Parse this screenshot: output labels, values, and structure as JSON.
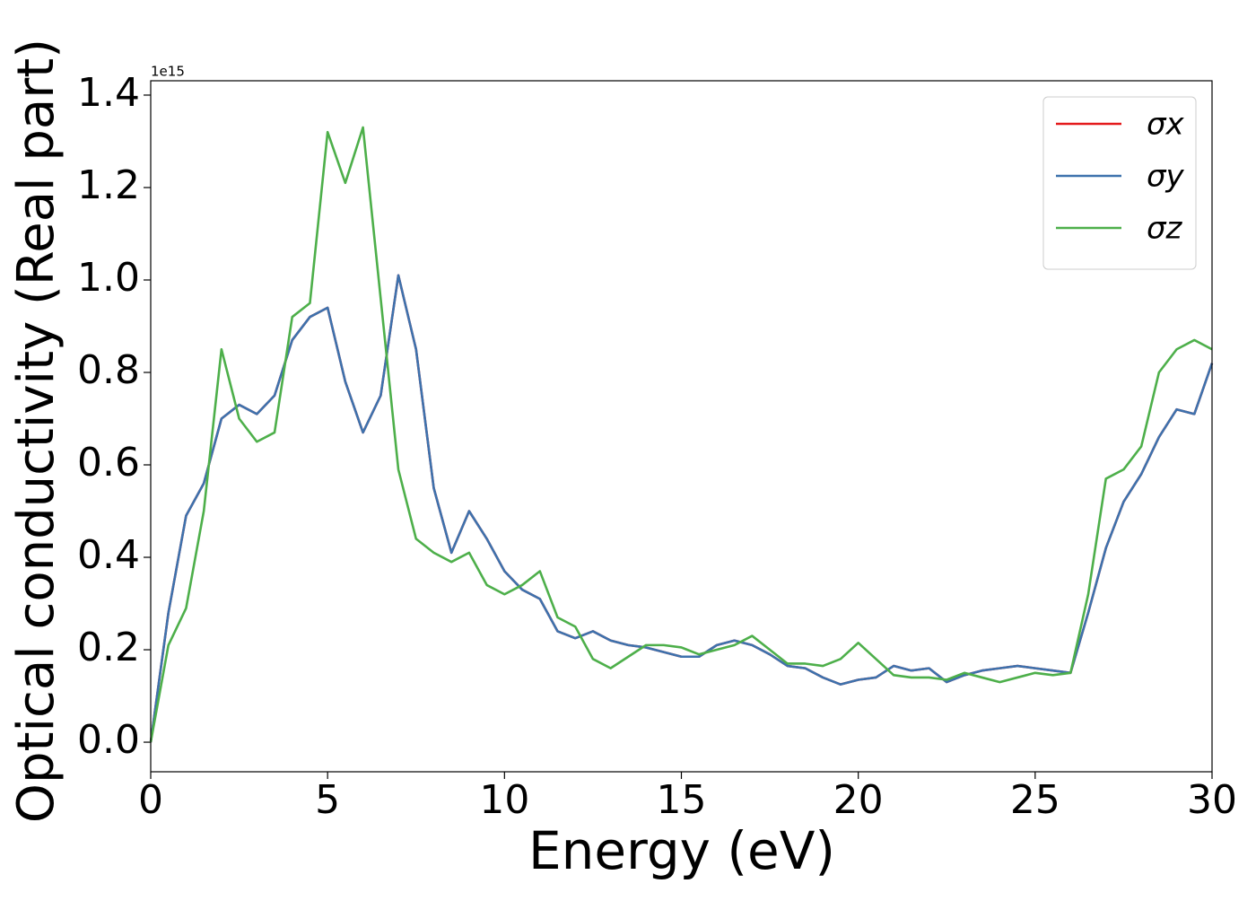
{
  "chart_data": {
    "type": "line",
    "xlabel": "Energy (eV)",
    "ylabel": "Optical conductivity (Real part)",
    "y_offset_text": "1e15",
    "x": [
      0,
      0.5,
      1,
      1.5,
      2,
      2.5,
      3,
      3.5,
      4,
      4.5,
      5,
      5.5,
      6,
      6.5,
      7,
      7.5,
      8,
      8.5,
      9,
      9.5,
      10,
      10.5,
      11,
      11.5,
      12,
      12.5,
      13,
      13.5,
      14,
      14.5,
      15,
      15.5,
      16,
      16.5,
      17,
      17.5,
      18,
      18.5,
      19,
      19.5,
      20,
      20.5,
      21,
      21.5,
      22,
      22.5,
      23,
      23.5,
      24,
      24.5,
      25,
      25.5,
      26,
      26.5,
      27,
      27.5,
      28,
      28.5,
      29,
      29.5,
      30
    ],
    "series": [
      {
        "name": "σx",
        "color": "#e41a1c",
        "values": [
          0,
          0.28,
          0.49,
          0.56,
          0.7,
          0.73,
          0.71,
          0.75,
          0.87,
          0.92,
          0.94,
          0.78,
          0.67,
          0.75,
          1.01,
          0.85,
          0.55,
          0.41,
          0.5,
          0.44,
          0.37,
          0.33,
          0.31,
          0.24,
          0.225,
          0.24,
          0.22,
          0.21,
          0.205,
          0.195,
          0.185,
          0.185,
          0.21,
          0.22,
          0.21,
          0.19,
          0.165,
          0.16,
          0.14,
          0.125,
          0.135,
          0.14,
          0.165,
          0.155,
          0.16,
          0.13,
          0.145,
          0.155,
          0.16,
          0.165,
          0.16,
          0.155,
          0.15,
          0.28,
          0.42,
          0.52,
          0.58,
          0.66,
          0.72,
          0.71,
          0.82
        ]
      },
      {
        "name": "σy",
        "color": "#3d72ad",
        "values": [
          0,
          0.28,
          0.49,
          0.56,
          0.7,
          0.73,
          0.71,
          0.75,
          0.87,
          0.92,
          0.94,
          0.78,
          0.67,
          0.75,
          1.01,
          0.85,
          0.55,
          0.41,
          0.5,
          0.44,
          0.37,
          0.33,
          0.31,
          0.24,
          0.225,
          0.24,
          0.22,
          0.21,
          0.205,
          0.195,
          0.185,
          0.185,
          0.21,
          0.22,
          0.21,
          0.19,
          0.165,
          0.16,
          0.14,
          0.125,
          0.135,
          0.14,
          0.165,
          0.155,
          0.16,
          0.13,
          0.145,
          0.155,
          0.16,
          0.165,
          0.16,
          0.155,
          0.15,
          0.28,
          0.42,
          0.52,
          0.58,
          0.66,
          0.72,
          0.71,
          0.82
        ]
      },
      {
        "name": "σz",
        "color": "#4daf4a",
        "values": [
          0,
          0.21,
          0.29,
          0.5,
          0.85,
          0.7,
          0.65,
          0.67,
          0.92,
          0.95,
          1.32,
          1.21,
          1.33,
          0.96,
          0.59,
          0.44,
          0.41,
          0.39,
          0.41,
          0.34,
          0.32,
          0.34,
          0.37,
          0.27,
          0.25,
          0.18,
          0.16,
          0.185,
          0.21,
          0.21,
          0.205,
          0.19,
          0.2,
          0.21,
          0.23,
          0.2,
          0.17,
          0.17,
          0.165,
          0.18,
          0.215,
          0.18,
          0.145,
          0.14,
          0.14,
          0.135,
          0.15,
          0.14,
          0.13,
          0.14,
          0.15,
          0.145,
          0.15,
          0.32,
          0.57,
          0.59,
          0.64,
          0.8,
          0.85,
          0.87,
          0.85
        ]
      }
    ],
    "xlim": [
      0,
      30
    ],
    "xticks": [
      0,
      5,
      10,
      15,
      20,
      25,
      30
    ],
    "ylim": [
      -0.064,
      1.431
    ],
    "yticks": [
      {
        "value": 0,
        "label": "0.0"
      },
      0.2,
      0.4,
      0.6,
      0.8,
      {
        "value": 1,
        "label": "1.0"
      },
      1.2,
      1.4
    ],
    "grid": false,
    "legend": "upper right"
  }
}
